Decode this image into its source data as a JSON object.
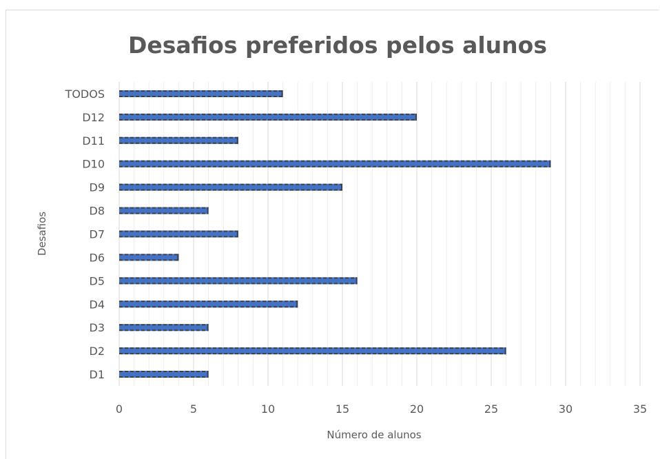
{
  "chart_data": {
    "type": "bar",
    "orientation": "horizontal",
    "title": "Desafios preferidos pelos alunos",
    "xlabel": "Número de alunos",
    "ylabel": "Desafios",
    "categories": [
      "D1",
      "D2",
      "D3",
      "D4",
      "D5",
      "D6",
      "D7",
      "D8",
      "D9",
      "D10",
      "D11",
      "D12",
      "TODOS"
    ],
    "values": [
      6,
      26,
      6,
      12,
      16,
      4,
      8,
      6,
      15,
      29,
      8,
      20,
      11
    ],
    "xlim": [
      0,
      35
    ],
    "xticks": [
      0,
      5,
      10,
      15,
      20,
      25,
      30,
      35
    ],
    "xtick_labels": [
      "0",
      "5",
      "10",
      "15",
      "20",
      "25",
      "30",
      "35"
    ],
    "gridlines": "vertical",
    "legend": "none",
    "colors": {
      "bar_fill": "#4472c4",
      "bar_dash": "#404040",
      "grid_major": "#d9d9d9",
      "grid_minor": "#ececec",
      "text": "#595959"
    }
  }
}
